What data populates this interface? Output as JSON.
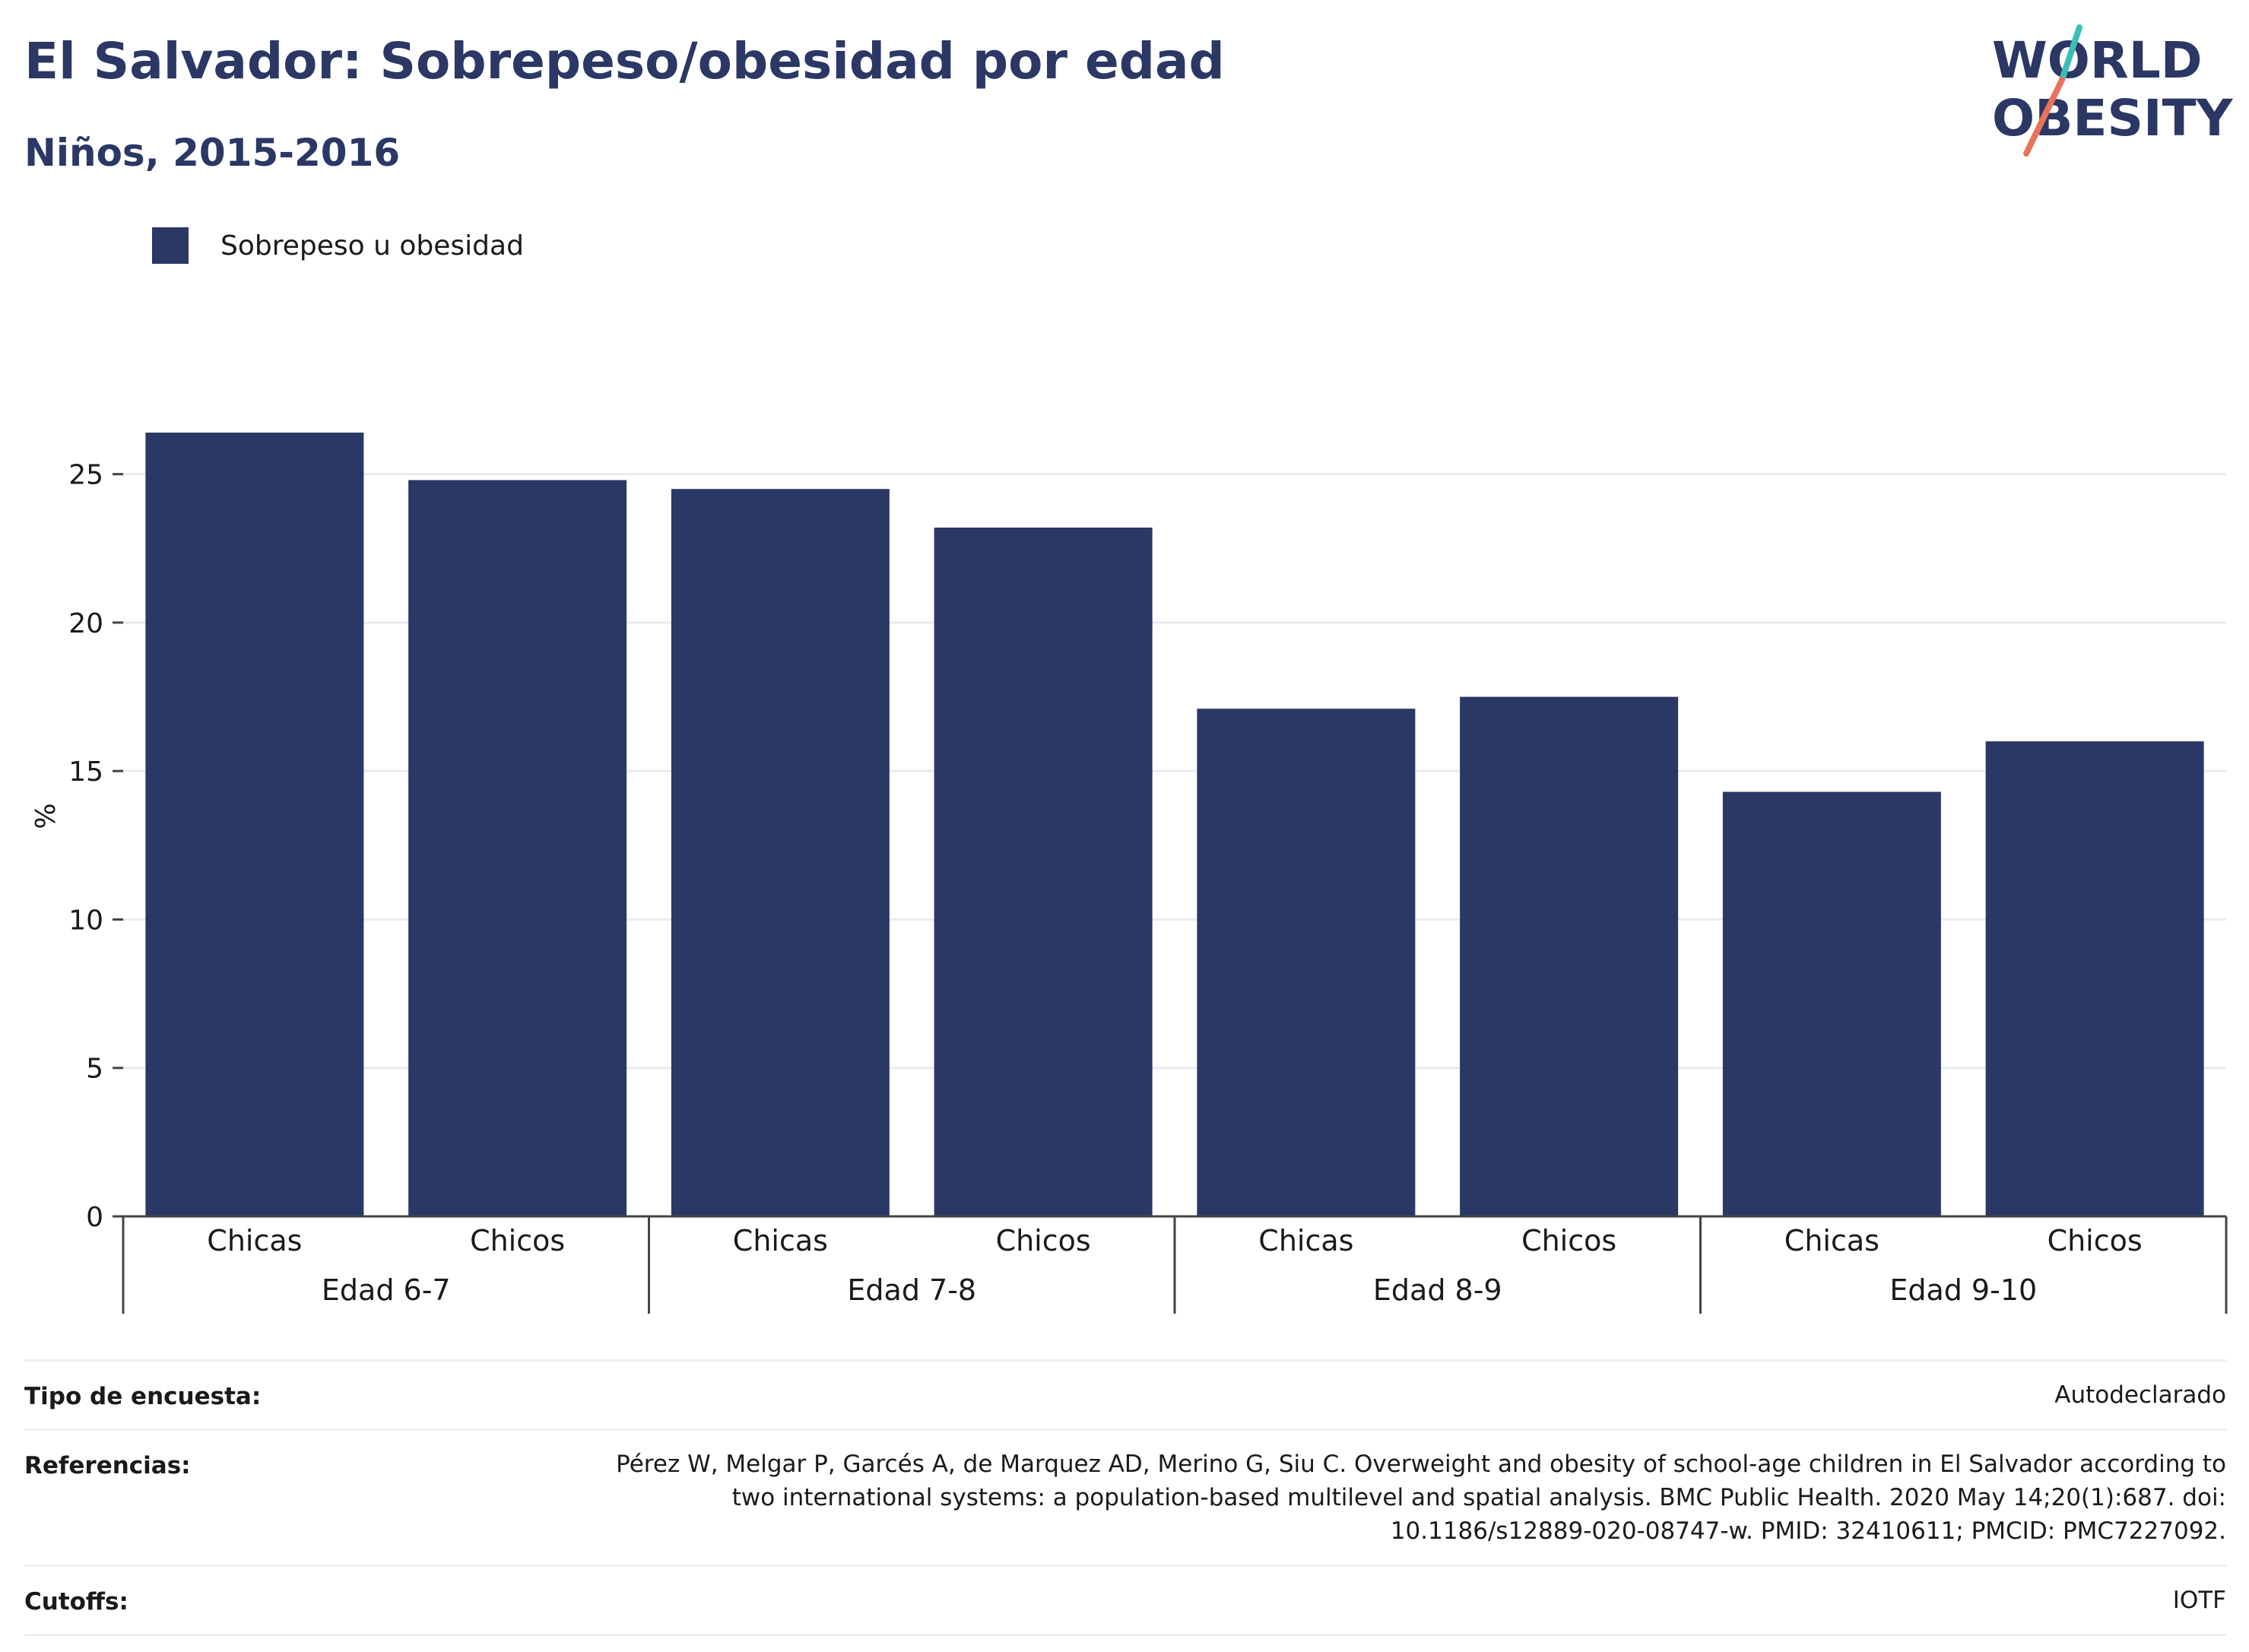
{
  "header": {
    "title": "El Salvador: Sobrepeso/obesidad por edad",
    "subtitle": "Niños, 2015-2016"
  },
  "logo": {
    "line1": "WORLD",
    "line2": "OBESITY",
    "accent_teal": "#3bbfb7",
    "accent_coral": "#e8735a"
  },
  "legend": {
    "label": "Sobrepeso u obesidad",
    "color": "#2b3764"
  },
  "chart_data": {
    "type": "bar",
    "title": "El Salvador: Sobrepeso/obesidad por edad",
    "subtitle": "Niños, 2015-2016",
    "ylabel": "%",
    "xlabel": "",
    "ylim": [
      0,
      28.5
    ],
    "yticks": [
      0,
      5,
      10,
      15,
      20,
      25
    ],
    "grid": true,
    "legend_position": "top-left",
    "bar_color": "#2b3764",
    "groups": [
      "Edad 6-7",
      "Edad 7-8",
      "Edad 8-9",
      "Edad 9-10"
    ],
    "categories": [
      "Chicas",
      "Chicos",
      "Chicas",
      "Chicos",
      "Chicas",
      "Chicos",
      "Chicas",
      "Chicos"
    ],
    "series": [
      {
        "name": "Sobrepeso u obesidad",
        "values": [
          26.4,
          24.8,
          24.5,
          23.2,
          17.1,
          17.5,
          14.3,
          16.0
        ]
      }
    ]
  },
  "meta": [
    {
      "key": "Tipo de encuesta:",
      "value": "Autodeclarado"
    },
    {
      "key": "Referencias:",
      "value": "Pérez W, Melgar P, Garcés A, de Marquez AD, Merino G, Siu C. Overweight and obesity of school-age children in El Salvador according to two international systems: a population-based multilevel and spatial analysis. BMC Public Health. 2020 May 14;20(1):687. doi: 10.1186/s12889-020-08747-w. PMID: 32410611; PMCID: PMC7227092."
    },
    {
      "key": "Cutoffs:",
      "value": "IOTF"
    }
  ]
}
